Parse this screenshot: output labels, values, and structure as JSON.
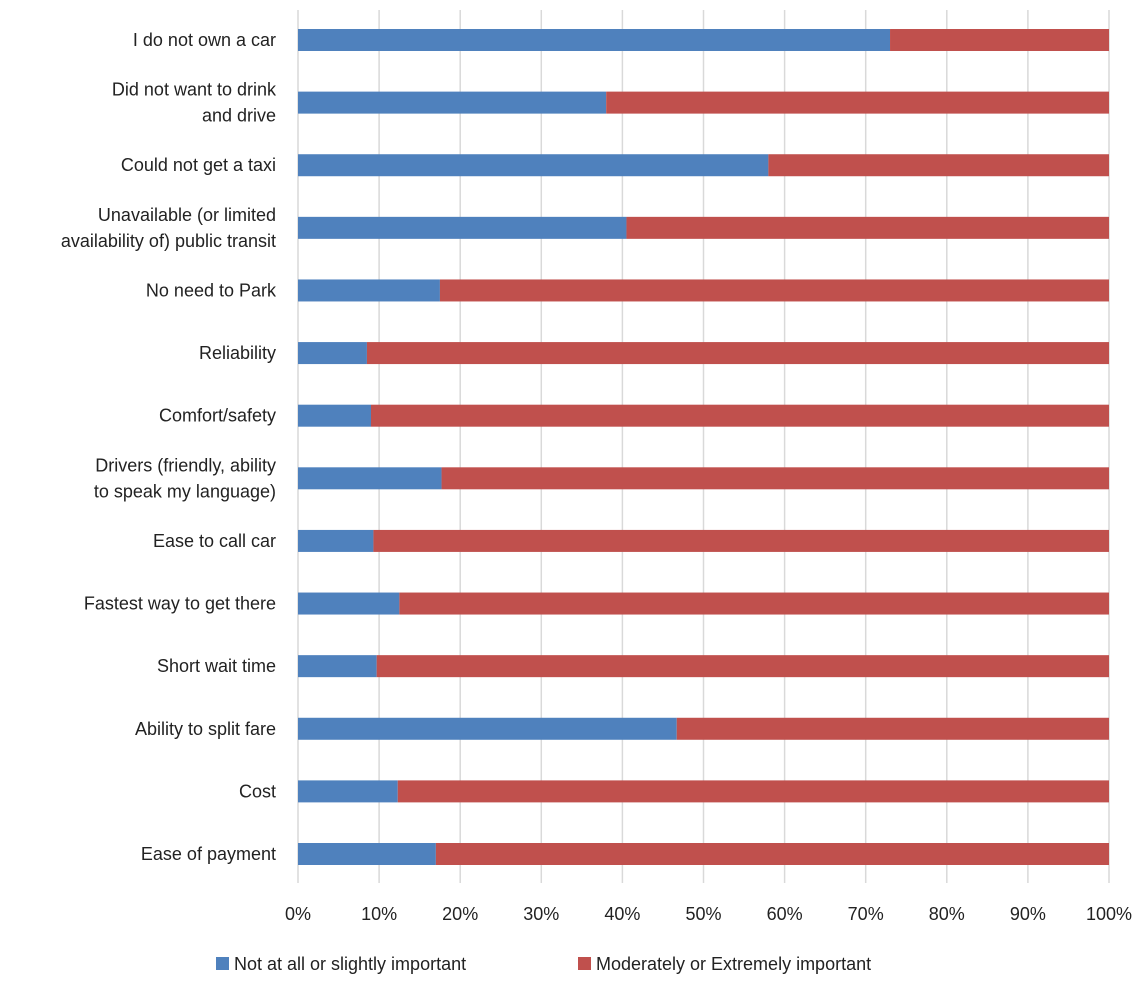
{
  "chart_data": {
    "type": "bar",
    "orientation": "horizontal",
    "stacked": "percent",
    "categories": [
      [
        "I do not own a car"
      ],
      [
        "Did not want to drink",
        "and drive"
      ],
      [
        "Could not get a taxi"
      ],
      [
        "Unavailable (or limited",
        "availability of) public transit"
      ],
      [
        "No need to Park"
      ],
      [
        "Reliability"
      ],
      [
        "Comfort/safety"
      ],
      [
        "Drivers (friendly, ability",
        "to speak my language)"
      ],
      [
        "Ease to call car"
      ],
      [
        "Fastest way to get there"
      ],
      [
        "Short wait time"
      ],
      [
        "Ability to split fare"
      ],
      [
        "Cost"
      ],
      [
        "Ease of payment"
      ]
    ],
    "series": [
      {
        "name": "Not at all or slightly important",
        "color": "#4f81bd",
        "values": [
          73,
          38,
          58,
          40.5,
          17.5,
          8.5,
          9,
          17.7,
          9.3,
          12.5,
          9.7,
          46.7,
          12.3,
          17
        ]
      },
      {
        "name": "Moderately or Extremely important",
        "color": "#c0504d",
        "values": [
          27,
          62,
          42,
          59.5,
          82.5,
          91.5,
          91,
          82.3,
          90.7,
          87.5,
          90.3,
          53.3,
          87.7,
          83
        ]
      }
    ],
    "xlim": [
      0,
      100
    ],
    "xticks": [
      "0%",
      "10%",
      "20%",
      "30%",
      "40%",
      "50%",
      "60%",
      "70%",
      "80%",
      "90%",
      "100%"
    ],
    "grid": true,
    "legend": "bottom"
  }
}
